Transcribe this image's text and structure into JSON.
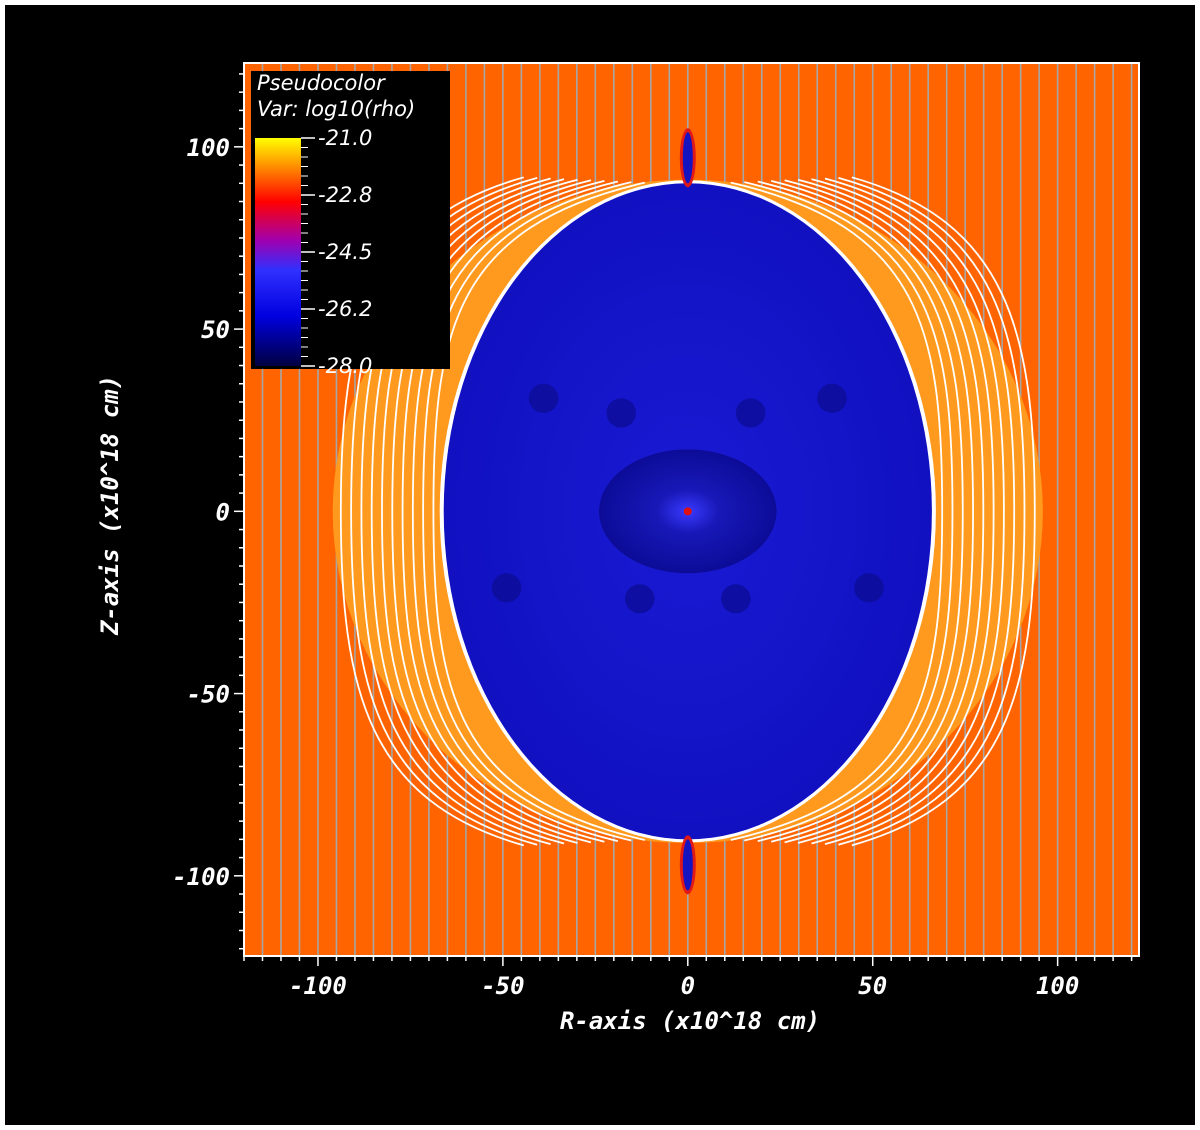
{
  "chart_data": {
    "type": "heatmap",
    "title": "",
    "xlabel": "R-axis (x10^18 cm)",
    "ylabel": "Z-axis (x10^18 cm)",
    "xlim": [
      -120,
      122
    ],
    "ylim": [
      -122,
      123
    ],
    "x_ticks": [
      -100,
      -50,
      0,
      50,
      100
    ],
    "y_ticks": [
      100,
      50,
      0,
      -50,
      -100
    ],
    "x_tick_labels": [
      "-100",
      "-50",
      "0",
      "50",
      "100"
    ],
    "y_tick_labels": [
      "100",
      "50",
      "0",
      "-50",
      "-100"
    ],
    "minor_tick_step": 5,
    "legend": {
      "position": "top-left",
      "plot_type": "Pseudocolor",
      "variable": "Var: log10(rho)",
      "levels": [
        "-21.0",
        "-22.8",
        "-24.5",
        "-26.2",
        "-28.0"
      ],
      "colormap": [
        "#000050",
        "#0000ff",
        "#b000c0",
        "#ff0000",
        "#ff8000",
        "#ffff00"
      ]
    },
    "background_value": -22.5,
    "bubble": {
      "center": [
        0,
        0
      ],
      "semi_axis_r": 66,
      "semi_axis_z": 90,
      "log10_rho": -26.5
    },
    "shocked_shell": {
      "semi_axis_r": 96,
      "semi_axis_z": 91
    },
    "jet_z_extent": [
      90,
      104
    ],
    "field_line_spacing": 5,
    "colors": {
      "background": "#ff6400",
      "shell": "#ff9a1e",
      "bubble": "#1414c8",
      "field_line_ambient": "#a6a6a6",
      "field_line_shell": "#ffffff",
      "core": "#e01010"
    }
  }
}
